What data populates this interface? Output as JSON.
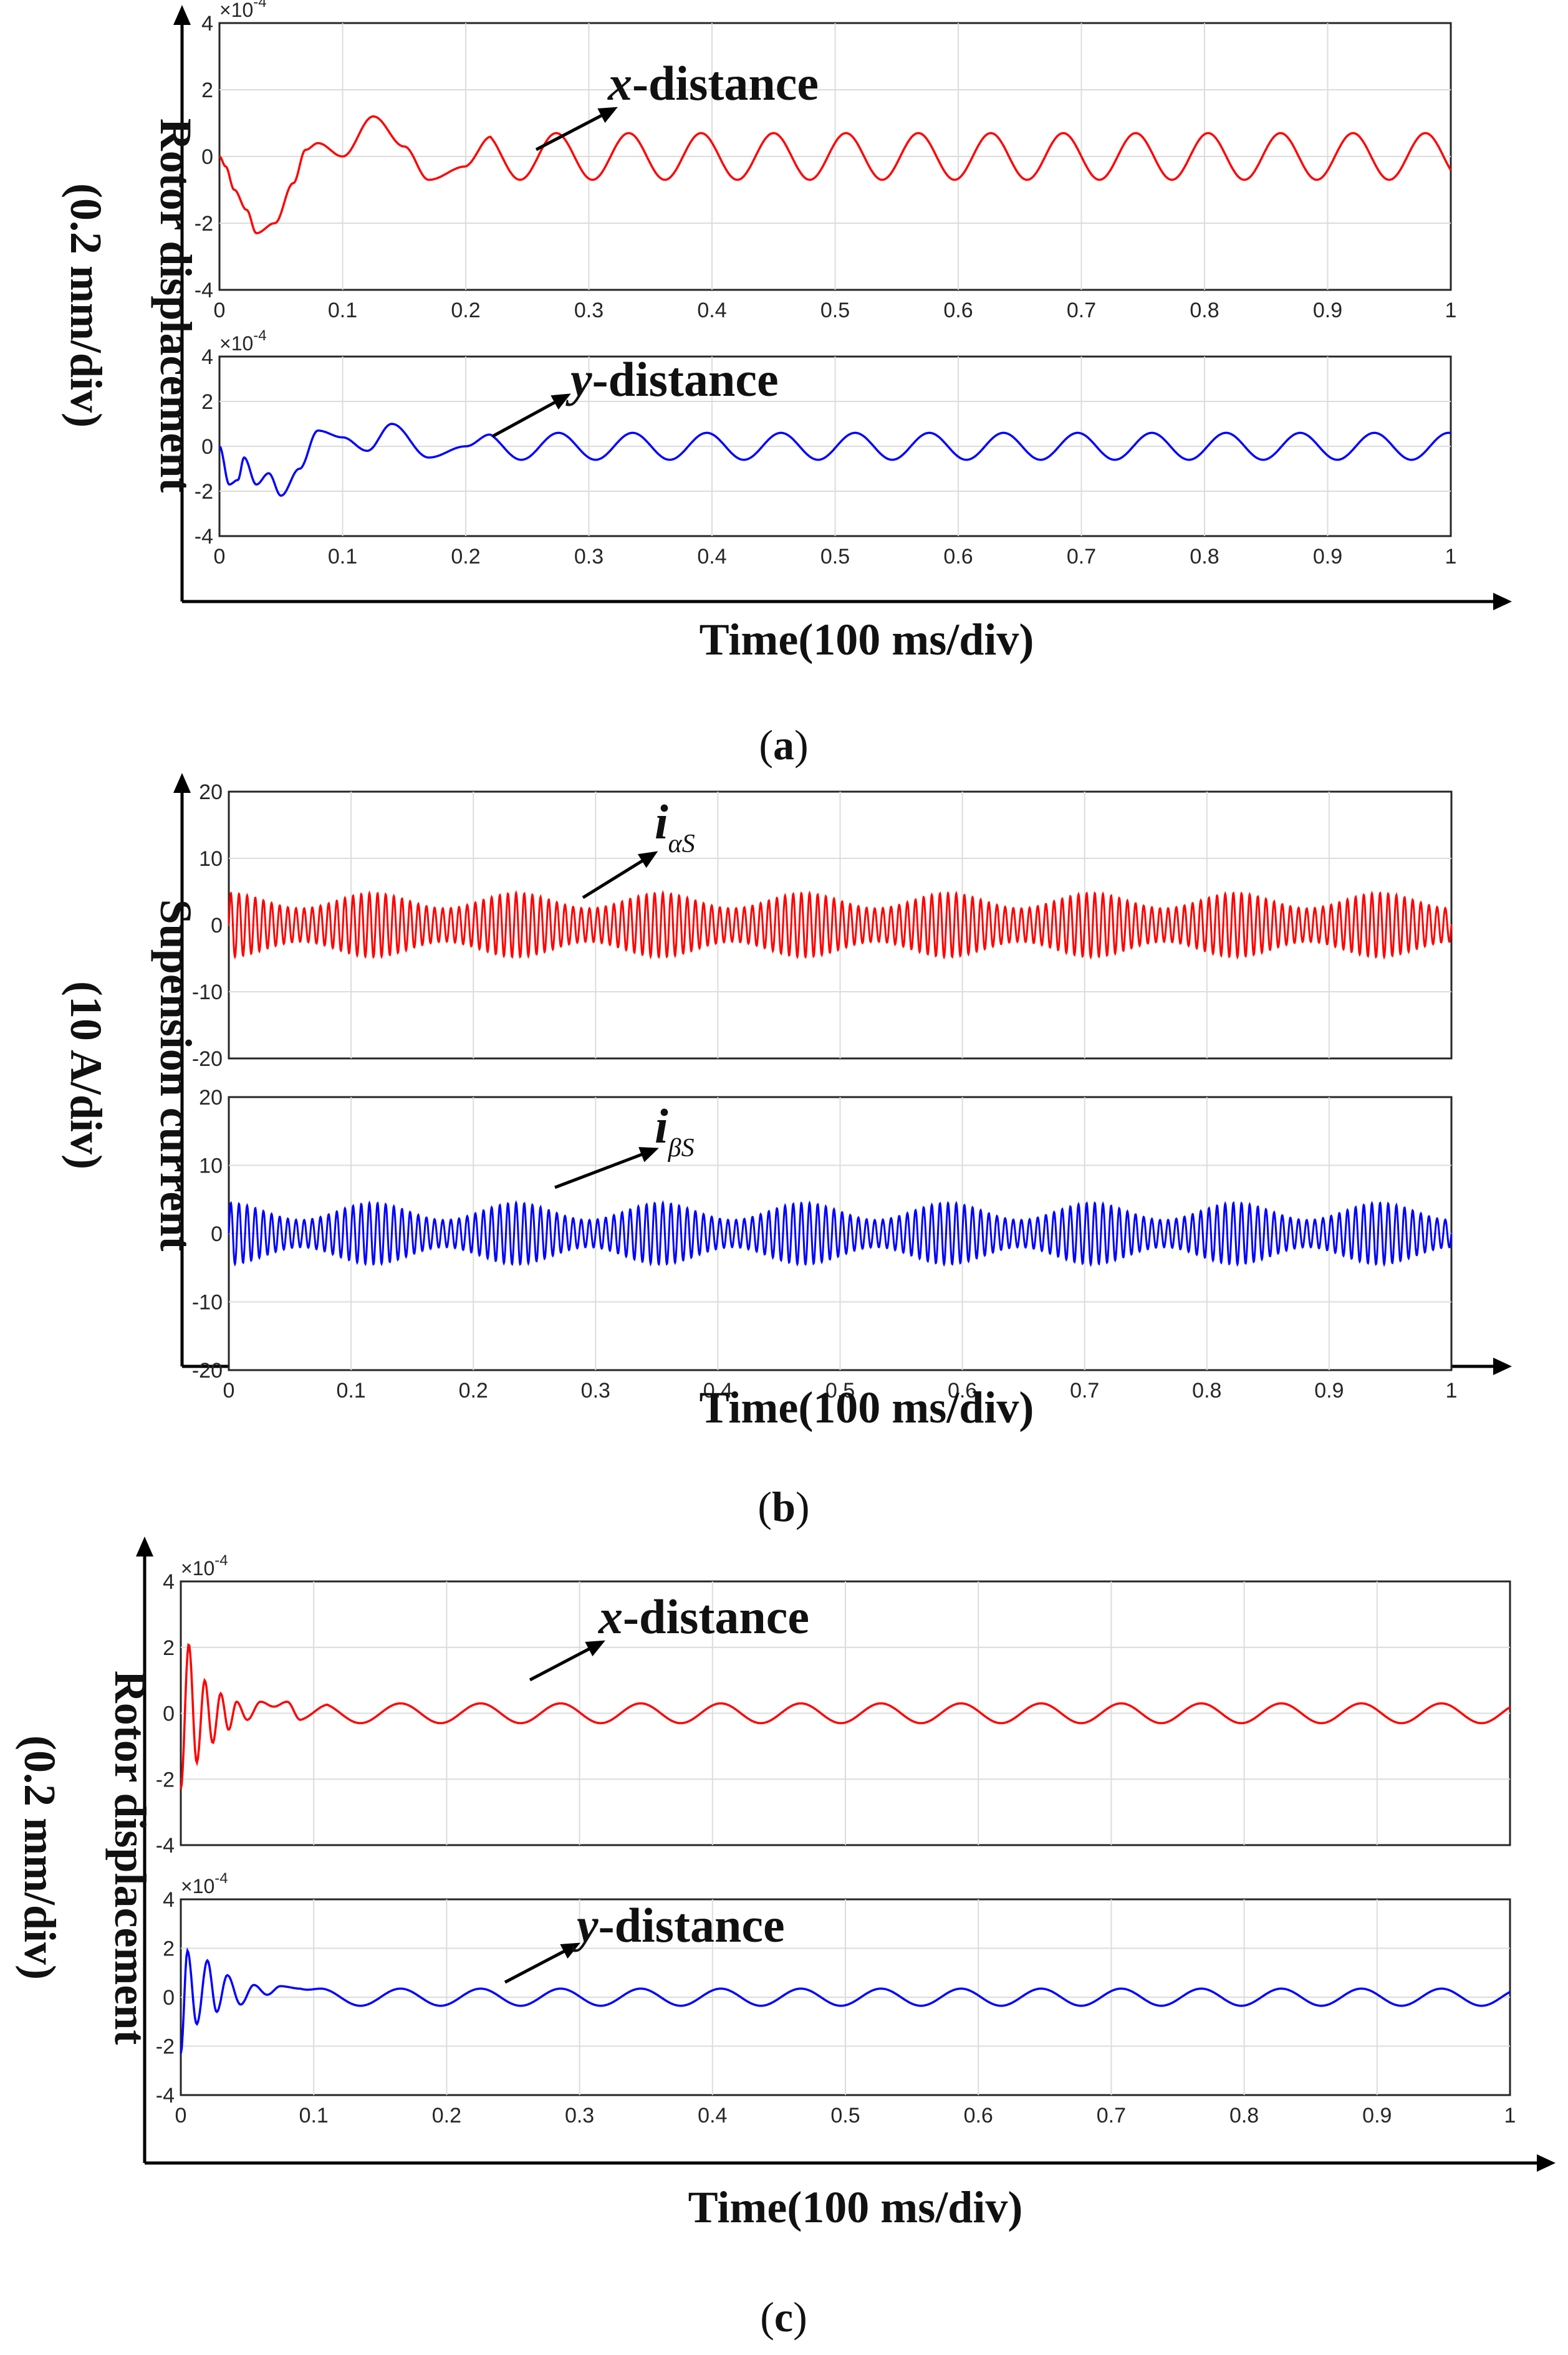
{
  "figures": [
    {
      "caption": "(a)",
      "caption_letter": "a",
      "ylabel_line1": "Rotor displacement",
      "ylabel_line2": "(0.2 mm/div)",
      "xlabel": "Time(100 ms/div)"
    },
    {
      "caption": "(b)",
      "caption_letter": "b",
      "ylabel_line1": "Supension current",
      "ylabel_line2": "(10 A/div)",
      "xlabel": "Time(100 ms/div)"
    },
    {
      "caption": "(c)",
      "caption_letter": "c",
      "ylabel_line1": "Rotor displacement",
      "ylabel_line2": "(0.2 mm/div)",
      "xlabel": "Time(100 ms/div)"
    }
  ],
  "chart_data": [
    {
      "figure": "a",
      "type": "line",
      "title": "x-distance",
      "annotation": {
        "var": "x",
        "rest": "-distance",
        "at_x": 0.25
      },
      "color": "#ff0000",
      "xlim": [
        0,
        1
      ],
      "ylim": [
        -4,
        4
      ],
      "yticks": [
        "4",
        "2",
        "0",
        "-2",
        "-4"
      ],
      "xticks": [
        "0",
        "0.1",
        "0.2",
        "0.3",
        "0.4",
        "0.5",
        "0.6",
        "0.7",
        "0.8",
        "0.9",
        "1"
      ],
      "multiplier": "×10",
      "multiplier_exp": "-4",
      "signal": {
        "settle": 0.2,
        "amp": 0.7,
        "freq": 17,
        "transient": [
          [
            0.0,
            0
          ],
          [
            0.005,
            -0.3
          ],
          [
            0.012,
            -1.0
          ],
          [
            0.022,
            -1.6
          ],
          [
            0.03,
            -2.3
          ],
          [
            0.045,
            -2.0
          ],
          [
            0.06,
            -0.8
          ],
          [
            0.07,
            0.2
          ],
          [
            0.08,
            0.4
          ],
          [
            0.1,
            0.0
          ],
          [
            0.125,
            1.2
          ],
          [
            0.15,
            0.3
          ],
          [
            0.17,
            -0.7
          ],
          [
            0.2,
            -0.3
          ]
        ]
      }
    },
    {
      "figure": "a",
      "type": "line",
      "title": "y-distance",
      "annotation": {
        "var": "y",
        "rest": "-distance",
        "at_x": 0.22
      },
      "color": "#0000ff",
      "xlim": [
        0,
        1
      ],
      "ylim": [
        -4,
        4
      ],
      "yticks": [
        "4",
        "2",
        "0",
        "-2",
        "-4"
      ],
      "xticks": [
        "0",
        "0.1",
        "0.2",
        "0.3",
        "0.4",
        "0.5",
        "0.6",
        "0.7",
        "0.8",
        "0.9",
        "1"
      ],
      "multiplier": "×10",
      "multiplier_exp": "-4",
      "signal": {
        "settle": 0.2,
        "amp": 0.6,
        "freq": 16.6,
        "transient": [
          [
            0.0,
            0
          ],
          [
            0.008,
            -1.7
          ],
          [
            0.015,
            -1.5
          ],
          [
            0.02,
            -0.5
          ],
          [
            0.03,
            -1.7
          ],
          [
            0.04,
            -1.2
          ],
          [
            0.05,
            -2.2
          ],
          [
            0.065,
            -1.0
          ],
          [
            0.08,
            0.7
          ],
          [
            0.1,
            0.4
          ],
          [
            0.12,
            -0.2
          ],
          [
            0.14,
            1.0
          ],
          [
            0.17,
            -0.5
          ],
          [
            0.2,
            0.0
          ]
        ]
      }
    },
    {
      "figure": "b",
      "type": "line",
      "title": "iαS",
      "annotation": {
        "var": "i",
        "sub": "αS",
        "at_x": 0.3
      },
      "color": "#ff0000",
      "xlim": [
        0,
        1
      ],
      "ylim": [
        -20,
        20
      ],
      "yticks": [
        "20",
        "10",
        "0",
        "-10",
        "-20"
      ],
      "xticks": [
        "0",
        "0.1",
        "0.2",
        "0.3",
        "0.4",
        "0.5",
        "0.6",
        "0.7",
        "0.8",
        "0.9",
        "1"
      ],
      "signal": {
        "carrier": 150,
        "env_freq": 8.5,
        "amp_min": 2.5,
        "amp_max": 4.8
      }
    },
    {
      "figure": "b",
      "type": "line",
      "title": "iβS",
      "annotation": {
        "var": "i",
        "sub": "βS",
        "at_x": 0.28
      },
      "color": "#0000ff",
      "xlim": [
        0,
        1
      ],
      "ylim": [
        -20,
        20
      ],
      "yticks": [
        "20",
        "10",
        "0",
        "-10",
        "-20"
      ],
      "xticks": [
        "0",
        "0.1",
        "0.2",
        "0.3",
        "0.4",
        "0.5",
        "0.6",
        "0.7",
        "0.8",
        "0.9",
        "1"
      ],
      "signal": {
        "carrier": 150,
        "env_freq": 8.5,
        "amp_min": 2.0,
        "amp_max": 4.5
      }
    },
    {
      "figure": "c",
      "type": "line",
      "title": "x-distance",
      "annotation": {
        "var": "x",
        "rest": "-distance",
        "at_x": 0.28
      },
      "color": "#ff0000",
      "xlim": [
        0,
        1
      ],
      "ylim": [
        -4,
        4
      ],
      "yticks": [
        "4",
        "2",
        "0",
        "-2",
        "-4"
      ],
      "xticks": [
        "0",
        "0.1",
        "0.2",
        "0.3",
        "0.4",
        "0.5",
        "0.6",
        "0.7",
        "0.8",
        "0.9",
        "1"
      ],
      "multiplier": "×10",
      "multiplier_exp": "-4",
      "signal": {
        "settle": 0.09,
        "amp": 0.3,
        "freq": 16.6,
        "transient": [
          [
            0.0,
            -2.3
          ],
          [
            0.006,
            2.1
          ],
          [
            0.012,
            -1.5
          ],
          [
            0.018,
            1.0
          ],
          [
            0.024,
            -0.9
          ],
          [
            0.03,
            0.6
          ],
          [
            0.036,
            -0.5
          ],
          [
            0.042,
            0.35
          ],
          [
            0.05,
            -0.2
          ],
          [
            0.06,
            0.35
          ],
          [
            0.07,
            0.2
          ],
          [
            0.08,
            0.35
          ],
          [
            0.09,
            -0.2
          ]
        ]
      }
    },
    {
      "figure": "c",
      "type": "line",
      "title": "y-distance",
      "annotation": {
        "var": "y",
        "rest": "-distance",
        "at_x": 0.24
      },
      "color": "#0000ff",
      "xlim": [
        0,
        1
      ],
      "ylim": [
        -4,
        4
      ],
      "yticks": [
        "4",
        "2",
        "0",
        "-2",
        "-4"
      ],
      "xticks": [
        "0",
        "0.1",
        "0.2",
        "0.3",
        "0.4",
        "0.5",
        "0.6",
        "0.7",
        "0.8",
        "0.9",
        "1"
      ],
      "multiplier": "×10",
      "multiplier_exp": "-4",
      "signal": {
        "settle": 0.09,
        "amp": 0.35,
        "freq": 16.6,
        "transient": [
          [
            0.0,
            -2.3
          ],
          [
            0.005,
            1.9
          ],
          [
            0.012,
            -1.1
          ],
          [
            0.02,
            1.5
          ],
          [
            0.027,
            -0.6
          ],
          [
            0.035,
            0.9
          ],
          [
            0.045,
            -0.3
          ],
          [
            0.055,
            0.5
          ],
          [
            0.065,
            0.1
          ],
          [
            0.075,
            0.45
          ],
          [
            0.09,
            0.35
          ]
        ]
      }
    }
  ]
}
